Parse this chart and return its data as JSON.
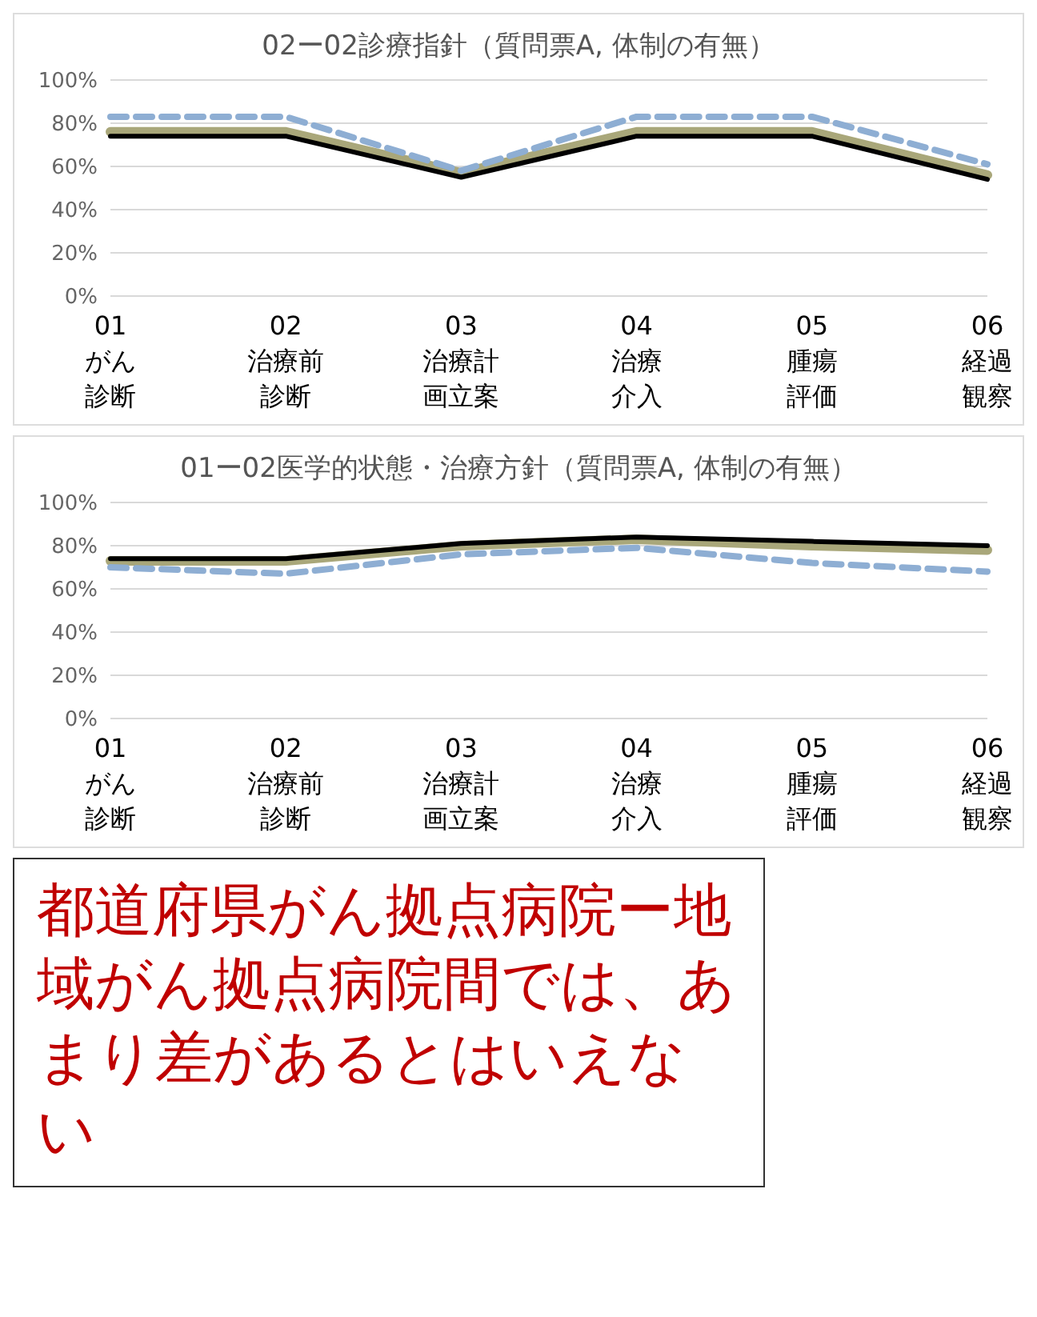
{
  "chart_data": [
    {
      "type": "line",
      "title": "02ー02診療指針（質問票A, 体制の有無）",
      "categories": [
        "01がん診断",
        "02治療前診断",
        "03治療計画立案",
        "04治療介入",
        "05腫瘍評価",
        "06経過観察"
      ],
      "series": [
        {
          "color": "#a9a77a",
          "line_style": "solid",
          "values": [
            76,
            76,
            57,
            76,
            76,
            56
          ]
        },
        {
          "color": "#000000",
          "line_style": "solid",
          "values": [
            74,
            74,
            55,
            74,
            74,
            54
          ]
        },
        {
          "color": "#8eaed3",
          "line_style": "dashed",
          "values": [
            83,
            83,
            58,
            83,
            83,
            61
          ]
        }
      ],
      "ylim": [
        0,
        100
      ],
      "yticks": [
        {
          "value": 0,
          "label": "0%"
        },
        {
          "value": 20,
          "label": "20%"
        },
        {
          "value": 40,
          "label": "40%"
        },
        {
          "value": 60,
          "label": "60%"
        },
        {
          "value": 80,
          "label": "80%"
        },
        {
          "value": 100,
          "label": "100%"
        }
      ],
      "grid": "y",
      "marker": "none"
    },
    {
      "type": "line",
      "title": "01ー02医学的状態・治療方針（質問票A, 体制の有無）",
      "categories": [
        "01がん診断",
        "02治療前診断",
        "03治療計画立案",
        "04治療介入",
        "05腫瘍評価",
        "06経過観察"
      ],
      "series": [
        {
          "color": "#a9a77a",
          "line_style": "solid",
          "values": [
            73,
            73,
            80,
            83,
            80,
            78
          ]
        },
        {
          "color": "#000000",
          "line_style": "solid",
          "values": [
            74,
            74,
            81,
            84,
            82,
            80
          ]
        },
        {
          "color": "#8eaed3",
          "line_style": "dashed",
          "values": [
            70,
            67,
            76,
            79,
            72,
            68
          ]
        }
      ],
      "ylim": [
        0,
        100
      ],
      "yticks": [
        {
          "value": 0,
          "label": "0%"
        },
        {
          "value": 20,
          "label": "20%"
        },
        {
          "value": 40,
          "label": "40%"
        },
        {
          "value": 60,
          "label": "60%"
        },
        {
          "value": 80,
          "label": "80%"
        },
        {
          "value": 100,
          "label": "100%"
        }
      ],
      "grid": "y",
      "marker": "none",
      "annotations": [
        "都道府県がん拠点病院ー地域がん拠点病院間では、あまり差があるとはいえない"
      ]
    }
  ]
}
